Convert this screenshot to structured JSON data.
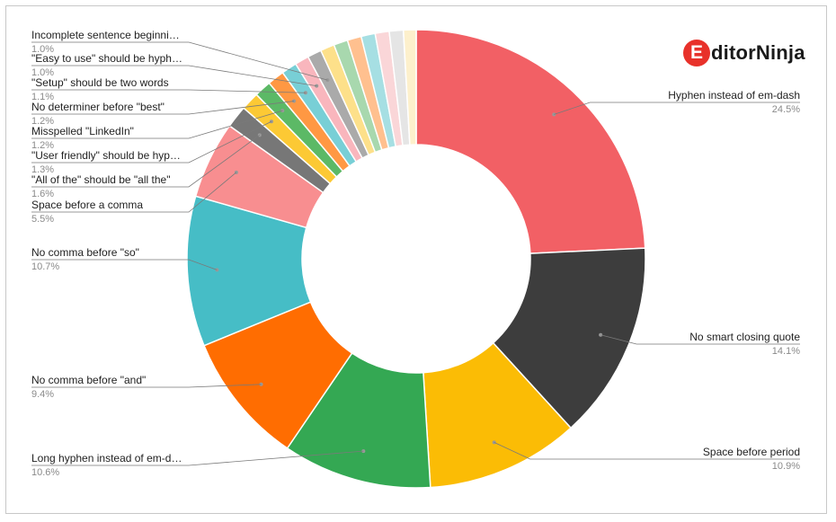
{
  "logo": {
    "mark": "E",
    "text": "ditorNinja"
  },
  "chart_data": {
    "type": "pie",
    "donut": true,
    "legend": "none",
    "slices": [
      {
        "label": "Hyphen instead of em-dash",
        "pct_label": "24.5%",
        "value": 24.5,
        "color": "#f26065"
      },
      {
        "label": "No smart closing quote",
        "pct_label": "14.1%",
        "value": 14.1,
        "color": "#3d3d3d"
      },
      {
        "label": "Space before period",
        "pct_label": "10.9%",
        "value": 10.9,
        "color": "#fbbc05"
      },
      {
        "label": "Long hyphen instead of em-d…",
        "pct_label": "10.6%",
        "value": 10.6,
        "color": "#34a853"
      },
      {
        "label": "No comma before \"and\"",
        "pct_label": "9.4%",
        "value": 9.4,
        "color": "#ff6d01"
      },
      {
        "label": "No comma before \"so\"",
        "pct_label": "10.7%",
        "value": 10.7,
        "color": "#46bdc6"
      },
      {
        "label": "Space before a comma",
        "pct_label": "5.5%",
        "value": 5.5,
        "color": "#f88e90"
      },
      {
        "label": "\"All of the\" should be \"all the\"",
        "pct_label": "1.6%",
        "value": 1.6,
        "color": "#777777"
      },
      {
        "label": "\"User friendly\" should be hyp…",
        "pct_label": "1.3%",
        "value": 1.3,
        "color": "#fcc934"
      },
      {
        "label": "Misspelled \"LinkedIn\"",
        "pct_label": "1.2%",
        "value": 1.2,
        "color": "#5cb966"
      },
      {
        "label": "No determiner before \"best\"",
        "pct_label": "1.2%",
        "value": 1.2,
        "color": "#ff9843"
      },
      {
        "label": "\"Setup\" should be two words",
        "pct_label": "1.1%",
        "value": 1.1,
        "color": "#78cfd6"
      },
      {
        "label": "\"Easy to use\" should be hyph…",
        "pct_label": "1.0%",
        "value": 1.0,
        "color": "#f9b6bd"
      },
      {
        "label": "Incomplete sentence beginni…",
        "pct_label": "1.0%",
        "value": 1.0,
        "color": "#aaaaaa"
      },
      {
        "label": "",
        "pct_label": "",
        "value": 1.0,
        "color": "#fde08a"
      },
      {
        "label": "",
        "pct_label": "",
        "value": 1.0,
        "color": "#a8d8ae"
      },
      {
        "label": "",
        "pct_label": "",
        "value": 1.0,
        "color": "#ffc08f"
      },
      {
        "label": "",
        "pct_label": "",
        "value": 1.0,
        "color": "#a6dfe3"
      },
      {
        "label": "",
        "pct_label": "",
        "value": 1.0,
        "color": "#fad6d8"
      },
      {
        "label": "",
        "pct_label": "",
        "value": 1.0,
        "color": "#e5e5e5"
      },
      {
        "label": "",
        "pct_label": "",
        "value": 0.9,
        "color": "#fdf0cc"
      }
    ]
  }
}
